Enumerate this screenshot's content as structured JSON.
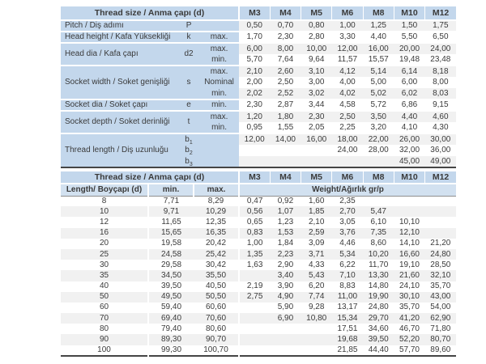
{
  "colors": {
    "header_blue": "#c3d7ec",
    "subheader_blue": "#d2e1f0",
    "stripe": "#f1f1f1",
    "dark_border": "#454545",
    "mid_border": "#8f8f8f",
    "text": "#3a3a3a"
  },
  "table1": {
    "header_label": "Thread size / Anma çapı (d)",
    "sizes": [
      "M3",
      "M4",
      "M5",
      "M6",
      "M8",
      "M10",
      "M12"
    ],
    "groups": [
      {
        "label": "Pitch / Diş adımı",
        "symbol": "P",
        "rows": [
          {
            "qual": "",
            "values": [
              "0,50",
              "0,70",
              "0,80",
              "1,00",
              "1,25",
              "1,50",
              "1,75"
            ]
          }
        ]
      },
      {
        "label": "Head height / Kafa Yüksekliği",
        "symbol": "k",
        "rows": [
          {
            "qual": "max.",
            "values": [
              "1,70",
              "2,30",
              "2,80",
              "3,30",
              "4,40",
              "5,50",
              "6,50"
            ]
          }
        ]
      },
      {
        "label": "Head dia / Kafa çapı",
        "symbol": "d2",
        "rows": [
          {
            "qual": "max.",
            "values": [
              "6,00",
              "8,00",
              "10,00",
              "12,00",
              "16,00",
              "20,00",
              "24,00"
            ]
          },
          {
            "qual": "min.",
            "values": [
              "5,70",
              "7,64",
              "9,64",
              "11,57",
              "15,57",
              "19,48",
              "23,48"
            ]
          }
        ]
      },
      {
        "label": "Socket width / Soket genişliği",
        "symbol": "s",
        "rows": [
          {
            "qual": "max.",
            "values": [
              "2,10",
              "2,60",
              "3,10",
              "4,12",
              "5,14",
              "6,14",
              "8,18"
            ]
          },
          {
            "qual": "Nominal",
            "values": [
              "2,00",
              "2,50",
              "3,00",
              "4,00",
              "5,00",
              "6,00",
              "8,00"
            ]
          },
          {
            "qual": "min.",
            "values": [
              "2,02",
              "2,52",
              "3,02",
              "4,02",
              "5,02",
              "6,02",
              "8,03"
            ]
          }
        ]
      },
      {
        "label": "Socket dia / Soket çapı",
        "symbol": "e",
        "rows": [
          {
            "qual": "min.",
            "values": [
              "2,30",
              "2,87",
              "3,44",
              "4,58",
              "5,72",
              "6,86",
              "9,15"
            ]
          }
        ]
      },
      {
        "label": "Socket depth / Soket derinliği",
        "symbol": "t",
        "rows": [
          {
            "qual": "max.",
            "values": [
              "1,20",
              "1,80",
              "2,30",
              "2,50",
              "3,50",
              "4,40",
              "4,60"
            ]
          },
          {
            "qual": "min.",
            "values": [
              "0,95",
              "1,55",
              "2,05",
              "2,25",
              "3,20",
              "4,10",
              "4,30"
            ]
          }
        ]
      },
      {
        "label": "Thread length / Diş uzunluğu",
        "symbol": "",
        "rows": [
          {
            "sym": "b",
            "sub": "1",
            "qual": "",
            "values": [
              "12,00",
              "14,00",
              "16,00",
              "18,00",
              "22,00",
              "26,00",
              "30,00"
            ]
          },
          {
            "sym": "b",
            "sub": "2",
            "qual": "",
            "values": [
              "",
              "",
              "",
              "24,00",
              "28,00",
              "32,00",
              "36,00"
            ]
          },
          {
            "sym": "b",
            "sub": "3",
            "qual": "",
            "values": [
              "",
              "",
              "",
              "",
              "",
              "45,00",
              "49,00"
            ]
          }
        ]
      }
    ]
  },
  "table2": {
    "header_label": "Thread size / Anma çapı (d)",
    "sizes": [
      "M3",
      "M4",
      "M5",
      "M6",
      "M8",
      "M10",
      "M12"
    ],
    "length_label": "Length/ Boyçapı (d)",
    "min_label": "min.",
    "max_label": "max.",
    "weight_label": "Weight/Ağırlık gr/p",
    "rows": [
      {
        "length": "8",
        "min": "7,71",
        "max": "8,29",
        "weights": [
          "0,47",
          "0,92",
          "1,60",
          "2,35",
          "",
          "",
          ""
        ]
      },
      {
        "length": "10",
        "min": "9,71",
        "max": "10,29",
        "weights": [
          "0,56",
          "1,07",
          "1,85",
          "2,70",
          "5,47",
          "",
          ""
        ]
      },
      {
        "length": "12",
        "min": "11,65",
        "max": "12,35",
        "weights": [
          "0,65",
          "1,23",
          "2,10",
          "3,05",
          "6,10",
          "10,10",
          ""
        ]
      },
      {
        "length": "16",
        "min": "15,65",
        "max": "16,35",
        "weights": [
          "0,83",
          "1,53",
          "2,59",
          "3,76",
          "7,35",
          "12,10",
          ""
        ]
      },
      {
        "length": "20",
        "min": "19,58",
        "max": "20,42",
        "weights": [
          "1,00",
          "1,84",
          "3,09",
          "4,46",
          "8,60",
          "14,10",
          "21,20"
        ]
      },
      {
        "length": "25",
        "min": "24,58",
        "max": "25,42",
        "weights": [
          "1,35",
          "2,23",
          "3,71",
          "5,34",
          "10,20",
          "16,60",
          "24,80"
        ]
      },
      {
        "length": "30",
        "min": "29,58",
        "max": "30,42",
        "weights": [
          "1,63",
          "2,90",
          "4,33",
          "6,22",
          "11,70",
          "19,10",
          "28,50"
        ]
      },
      {
        "length": "35",
        "min": "34,50",
        "max": "35,50",
        "weights": [
          "",
          "3,40",
          "5,43",
          "7,10",
          "13,30",
          "21,60",
          "32,10"
        ]
      },
      {
        "length": "40",
        "min": "39,50",
        "max": "40,50",
        "weights": [
          "2,19",
          "3,90",
          "6,20",
          "8,83",
          "14,80",
          "24,10",
          "35,70"
        ]
      },
      {
        "length": "50",
        "min": "49,50",
        "max": "50,50",
        "weights": [
          "2,75",
          "4,90",
          "7,74",
          "11,00",
          "19,90",
          "30,10",
          "43,00"
        ]
      },
      {
        "length": "60",
        "min": "59,40",
        "max": "60,60",
        "weights": [
          "",
          "5,90",
          "9,28",
          "13,17",
          "24,80",
          "35,70",
          "54,00"
        ]
      },
      {
        "length": "70",
        "min": "69,40",
        "max": "70,60",
        "weights": [
          "",
          "6,90",
          "10,80",
          "15,34",
          "29,70",
          "41,20",
          "62,90"
        ]
      },
      {
        "length": "80",
        "min": "79,40",
        "max": "80,60",
        "weights": [
          "",
          "",
          "",
          "17,51",
          "34,60",
          "46,70",
          "71,80"
        ]
      },
      {
        "length": "90",
        "min": "89,30",
        "max": "90,70",
        "weights": [
          "",
          "",
          "",
          "19,68",
          "39,50",
          "52,20",
          "80,70"
        ]
      },
      {
        "length": "100",
        "min": "99,30",
        "max": "100,70",
        "weights": [
          "",
          "",
          "",
          "21,85",
          "44,40",
          "57,70",
          "89,60"
        ]
      }
    ]
  }
}
